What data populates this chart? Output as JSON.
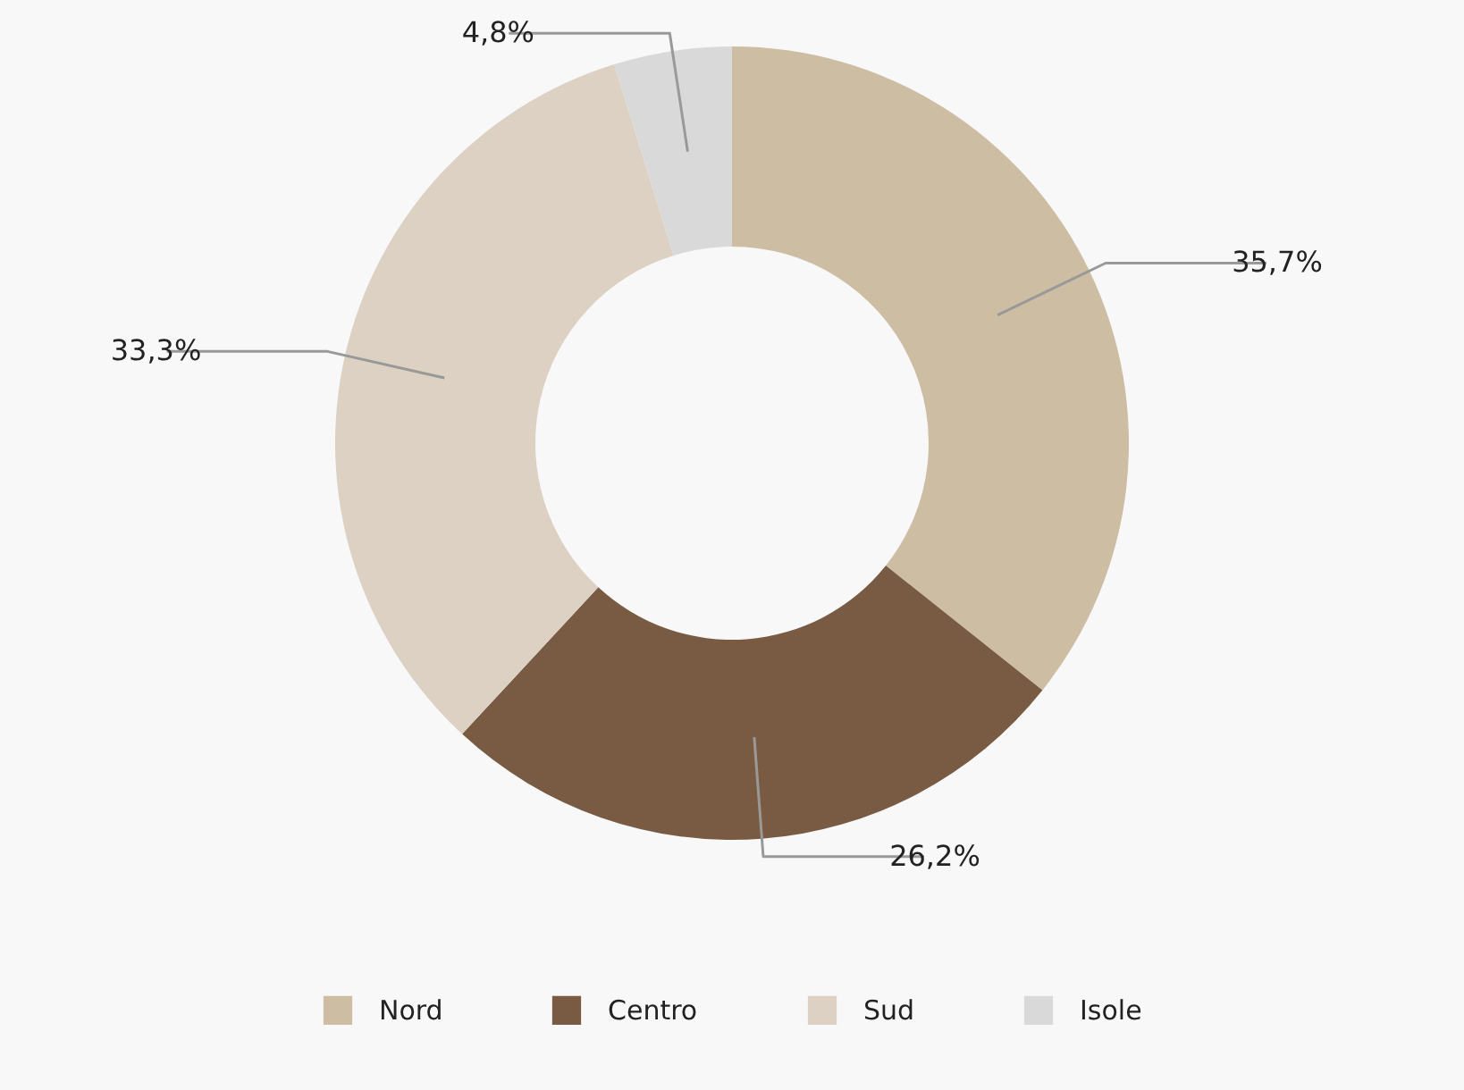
{
  "chart_data": {
    "type": "donut",
    "categories": [
      "Nord",
      "Centro",
      "Sud",
      "Isole"
    ],
    "values": [
      35.7,
      26.2,
      33.3,
      4.8
    ],
    "colors": [
      "#cdbda3",
      "#785b42",
      "#dcd1c3",
      "#d9d9d9"
    ],
    "value_labels": [
      "35,7%",
      "26,2%",
      "33,3%",
      "4,8%"
    ],
    "legend": "bottom"
  }
}
